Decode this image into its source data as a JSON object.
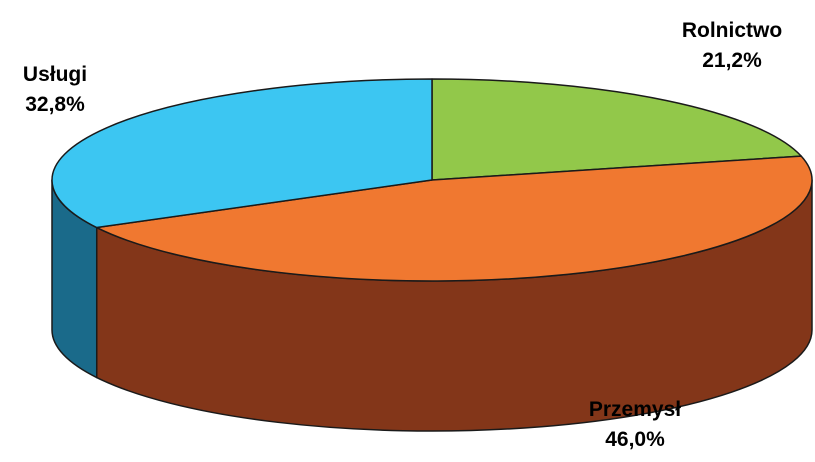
{
  "chart_data": {
    "type": "pie",
    "style": "3d",
    "slices": [
      {
        "label": "Rolnictwo",
        "value": 21.2,
        "display": "21,2%",
        "color": "#92C84A",
        "side_color": "#5E8A2A"
      },
      {
        "label": "Przemysł",
        "value": 46.0,
        "display": "46,0%",
        "color": "#F07830",
        "side_color": "#833619"
      },
      {
        "label": "Usługi",
        "value": 32.8,
        "display": "32,8%",
        "color": "#3CC6F2",
        "side_color": "#1A6A8A"
      }
    ],
    "start_angle": "12 o'clock",
    "direction": "clockwise",
    "title": "",
    "legend": "none",
    "labels": "outside, bold, category above percentage"
  }
}
